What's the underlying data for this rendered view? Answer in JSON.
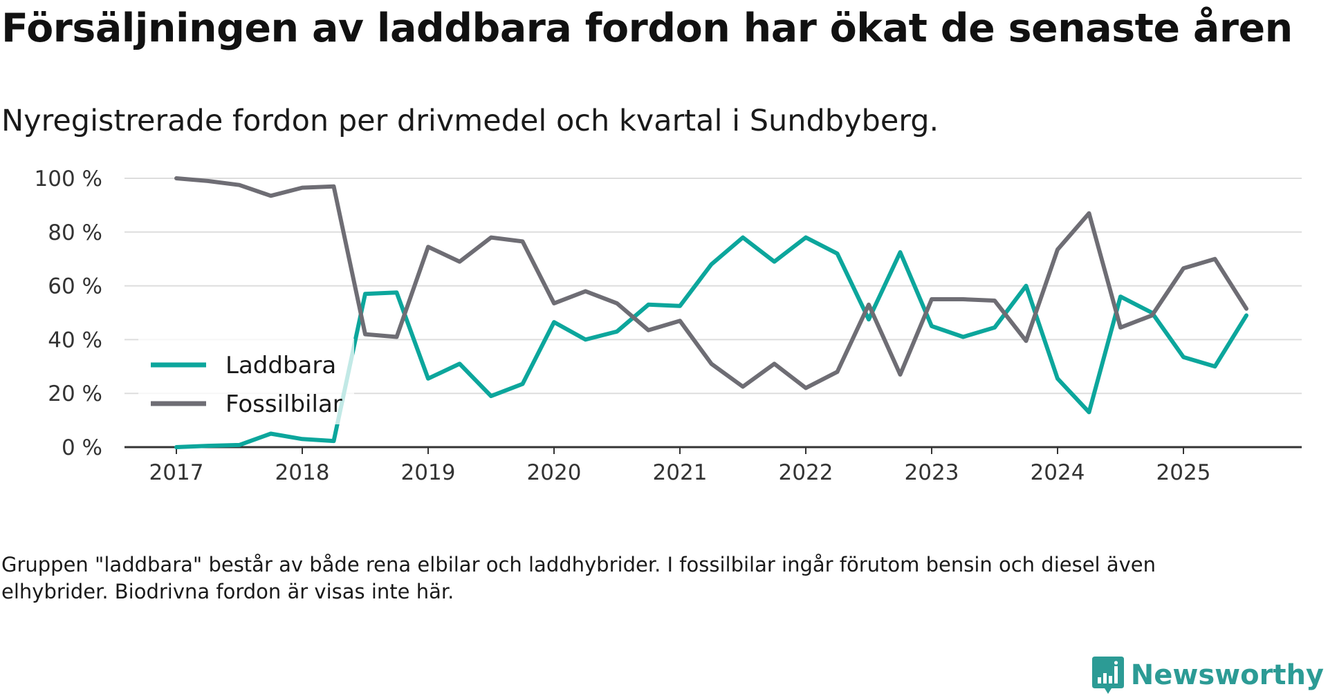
{
  "title": "Försäljningen av laddbara fordon har ökat de senaste åren",
  "subtitle": "Nyregistrerade fordon per drivmedel och kvartal i Sundbyberg.",
  "footnote": "Gruppen \"laddbara\" består av både rena elbilar och laddhybrider. I fossilbilar ingår förutom bensin och diesel även elhybrider. Biodrivna fordon är visas inte här.",
  "brand": "Newsworthy",
  "colors": {
    "laddbara": "#0ca69c",
    "fossil": "#6e6d74",
    "grid": "#dddddd",
    "axis": "#333333",
    "brand": "#2c9b95"
  },
  "chart_data": {
    "type": "line",
    "title": "Försäljningen av laddbara fordon har ökat de senaste åren",
    "subtitle": "Nyregistrerade fordon per drivmedel och kvartal i Sundbyberg.",
    "x_start": 2017.0,
    "x_step": 0.25,
    "x_tick_labels": [
      "2017",
      "2018",
      "2019",
      "2020",
      "2021",
      "2022",
      "2023",
      "2024",
      "2025"
    ],
    "y_tick_labels": [
      "0 %",
      "20 %",
      "40 %",
      "60 %",
      "80 %",
      "100 %"
    ],
    "y_ticks": [
      0,
      20,
      40,
      60,
      80,
      100
    ],
    "ylim": [
      0,
      100
    ],
    "xlim": [
      2016.6,
      2026.0
    ],
    "xlabel": "",
    "ylabel": "",
    "legend_position": "left-middle",
    "series": [
      {
        "name": "Laddbara",
        "color": "#0ca69c",
        "values": [
          0,
          0.5,
          0.8,
          5,
          3,
          2.3,
          57,
          57.5,
          25.5,
          31,
          19,
          23.5,
          46.5,
          40,
          43,
          53,
          52.5,
          68,
          78,
          69,
          78,
          72,
          47.5,
          72.5,
          45,
          41,
          44.5,
          60,
          25.5,
          13,
          56,
          50,
          33.5,
          30,
          49
        ]
      },
      {
        "name": "Fossilbilar",
        "color": "#6e6d74",
        "values": [
          100,
          99,
          97.5,
          93.5,
          96.5,
          97,
          42,
          41,
          74.5,
          69,
          78,
          76.5,
          53.5,
          58,
          53.5,
          43.5,
          47,
          31,
          22.5,
          31,
          22,
          28,
          53,
          27,
          55,
          55,
          54.5,
          39.5,
          73.5,
          87,
          44.5,
          49,
          66.5,
          70,
          51.5
        ]
      }
    ]
  }
}
